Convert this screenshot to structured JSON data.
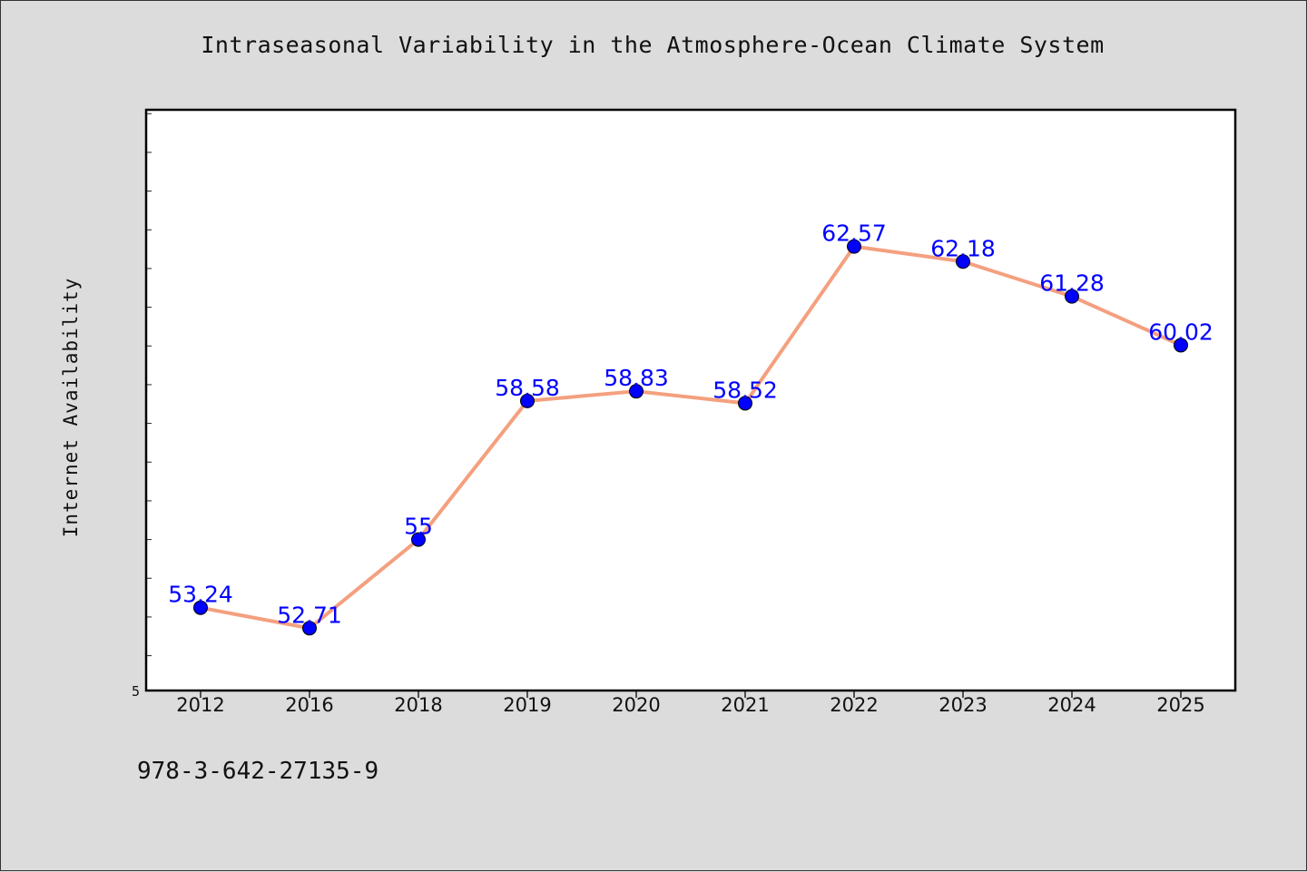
{
  "chart_data": {
    "type": "line",
    "title": "Intraseasonal Variability in the Atmosphere-Ocean Climate System",
    "xlabel": "",
    "ylabel": "Internet Availability",
    "categories": [
      "2012",
      "2016",
      "2018",
      "2019",
      "2020",
      "2021",
      "2022",
      "2023",
      "2024",
      "2025"
    ],
    "series": [
      {
        "values": [
          53.24,
          52.71,
          55,
          58.58,
          58.83,
          58.52,
          62.57,
          62.18,
          61.28,
          60.02
        ],
        "data_labels": [
          "53.24",
          "52.71",
          "55",
          "58.58",
          "58.83",
          "58.52",
          "62.57",
          "62.18",
          "61.28",
          "60.02"
        ],
        "line_color": "#f4a07f",
        "marker_color": "#0000ff"
      }
    ],
    "ylim": [
      51.1,
      66.1
    ],
    "ytick_label": "5",
    "grid": false,
    "legend": "none"
  },
  "footnote": "978-3-642-27135-9"
}
